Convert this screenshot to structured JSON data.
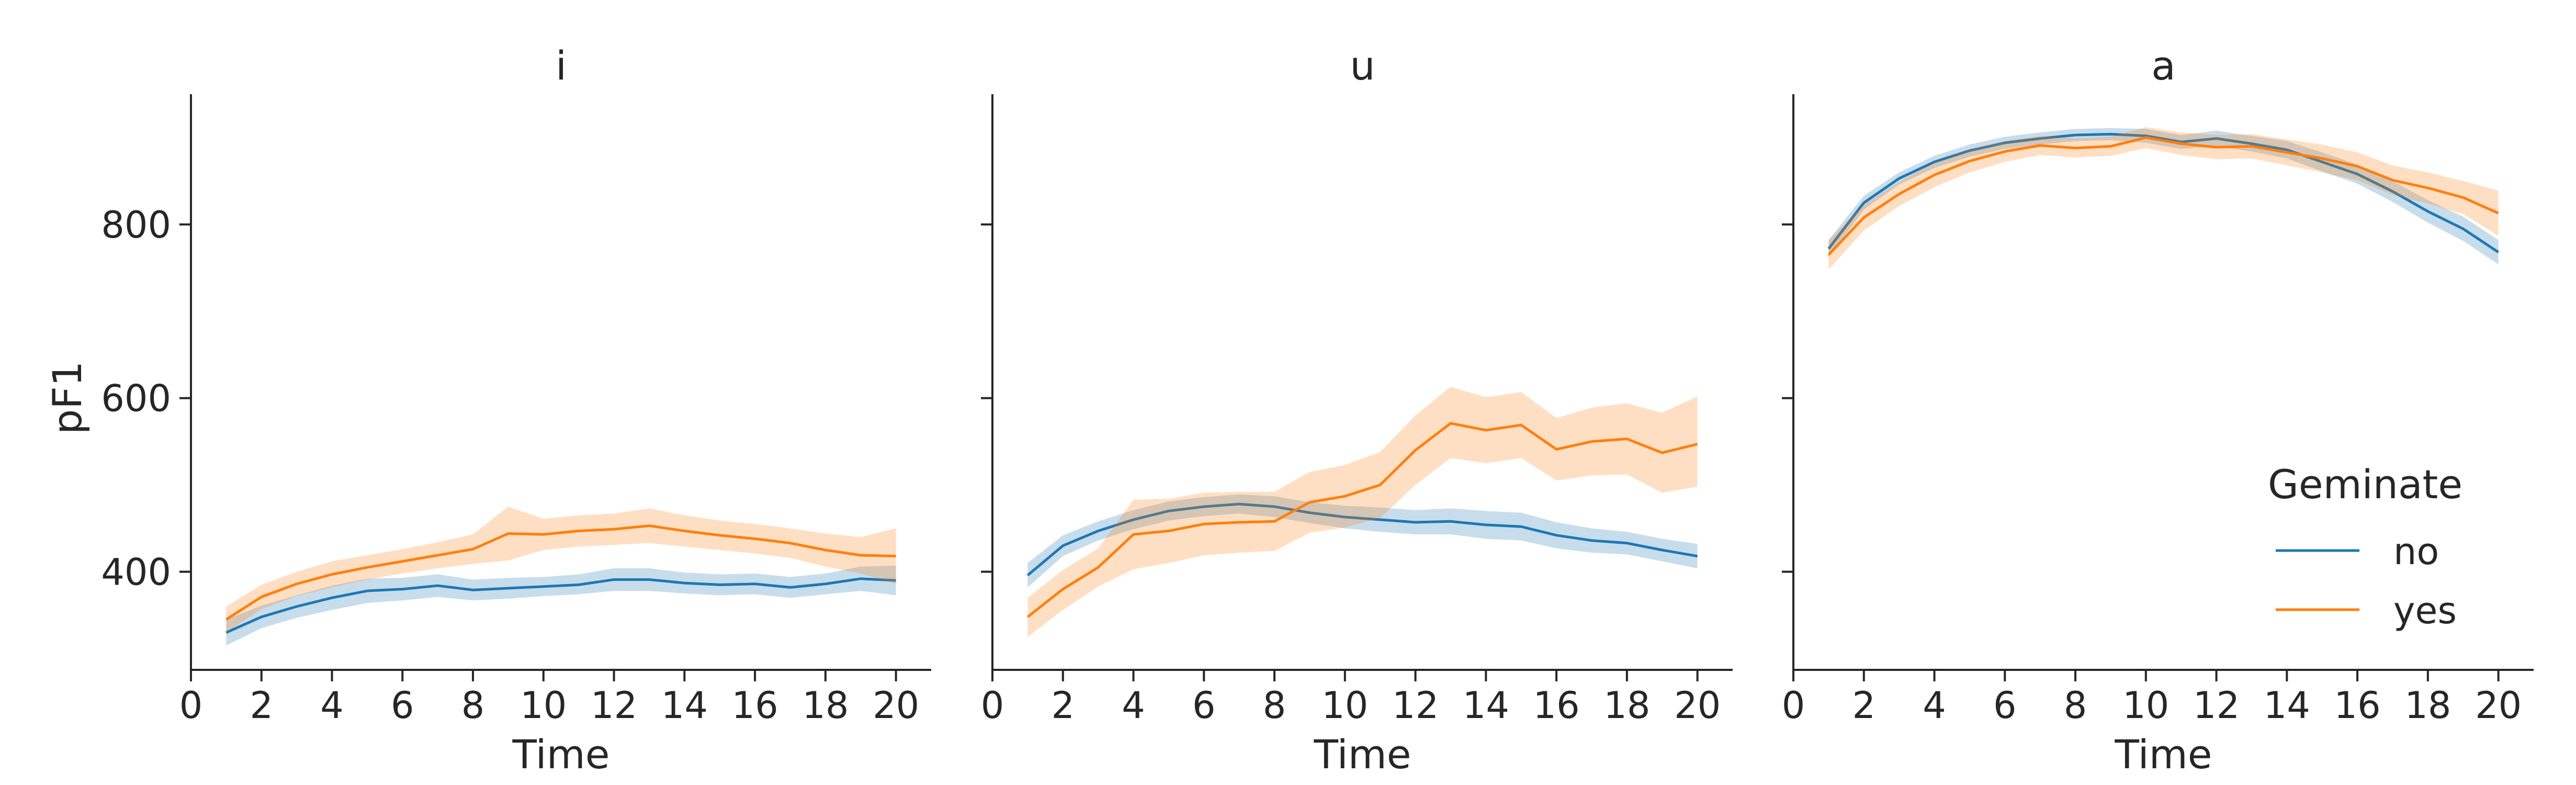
{
  "chart_data": {
    "type": "line",
    "figure_ylabel": "pF1",
    "xlabel": "Time",
    "xlim": [
      0,
      21
    ],
    "ylim": [
      287,
      950
    ],
    "xticks": [
      0,
      2,
      4,
      6,
      8,
      10,
      12,
      14,
      16,
      18,
      20
    ],
    "yticks": [
      400,
      600,
      800
    ],
    "grid": false,
    "x": [
      1,
      2,
      3,
      4,
      5,
      6,
      7,
      8,
      9,
      10,
      11,
      12,
      13,
      14,
      15,
      16,
      17,
      18,
      19,
      20
    ],
    "legend": {
      "title": "Geminate",
      "placement": "lower-right of right panel",
      "entries": [
        {
          "label": "no",
          "color": "#1f77b4"
        },
        {
          "label": "yes",
          "color": "#ff7f0e"
        }
      ]
    },
    "panels": [
      {
        "title": "i",
        "series": [
          {
            "name": "no",
            "color": "#1f77b4",
            "mean": [
              330,
              348,
              360,
              370,
              378,
              380,
              384,
              379,
              381,
              383,
              385,
              391,
              391,
              387,
              385,
              386,
              382,
              386,
              392,
              390
            ],
            "lower": [
              315,
              335,
              347,
              356,
              364,
              367,
              371,
              367,
              369,
              372,
              374,
              378,
              378,
              375,
              373,
              374,
              370,
              374,
              378,
              373
            ],
            "upper": [
              345,
              361,
              373,
              384,
              392,
              393,
              397,
              391,
              393,
              394,
              397,
              404,
              404,
              399,
              397,
              398,
              394,
              398,
              406,
              407
            ]
          },
          {
            "name": "yes",
            "color": "#ff7f0e",
            "mean": [
              345,
              371,
              386,
              397,
              405,
              412,
              419,
              426,
              444,
              443,
              447,
              449,
              453,
              447,
              442,
              438,
              433,
              425,
              419,
              418
            ],
            "lower": [
              330,
              357,
              372,
              382,
              391,
              398,
              404,
              409,
              413,
              425,
              429,
              431,
              433,
              429,
              425,
              421,
              416,
              406,
              398,
              386
            ],
            "upper": [
              360,
              385,
              400,
              412,
              419,
              426,
              434,
              443,
              475,
              461,
              465,
              467,
              473,
              465,
              459,
              455,
              450,
              444,
              440,
              450
            ]
          }
        ]
      },
      {
        "title": "u",
        "series": [
          {
            "name": "no",
            "color": "#1f77b4",
            "mean": [
              396,
              430,
              447,
              460,
              470,
              475,
              478,
              475,
              468,
              463,
              460,
              457,
              458,
              454,
              452,
              442,
              436,
              433,
              425,
              418
            ],
            "lower": [
              382,
              418,
              436,
              449,
              459,
              464,
              467,
              463,
              456,
              450,
              446,
              443,
              443,
              438,
              436,
              427,
              422,
              420,
              412,
              404
            ],
            "upper": [
              410,
              442,
              458,
              471,
              481,
              486,
              489,
              487,
              480,
              476,
              474,
              471,
              473,
              470,
              468,
              457,
              450,
              446,
              438,
              432
            ]
          },
          {
            "name": "yes",
            "color": "#ff7f0e",
            "mean": [
              348,
              380,
              405,
              443,
              447,
              455,
              457,
              458,
              480,
              487,
              500,
              540,
              571,
              563,
              569,
              541,
              550,
              553,
              537,
              547
            ],
            "lower": [
              325,
              356,
              383,
              403,
              410,
              419,
              422,
              424,
              445,
              451,
              462,
              500,
              531,
              525,
              531,
              505,
              511,
              512,
              491,
              498
            ],
            "upper": [
              370,
              402,
              427,
              483,
              484,
              491,
              492,
              492,
              515,
              523,
              538,
              580,
              613,
              601,
              607,
              577,
              589,
              594,
              583,
              602
            ]
          }
        ]
      },
      {
        "title": "a",
        "series": [
          {
            "name": "no",
            "color": "#1f77b4",
            "mean": [
              772,
              825,
              853,
              872,
              885,
              894,
              899,
              903,
              904,
              902,
              895,
              899,
              893,
              886,
              872,
              858,
              838,
              815,
              795,
              768
            ],
            "lower": [
              762,
              817,
              846,
              865,
              878,
              887,
              892,
              896,
              897,
              894,
              887,
              890,
              884,
              876,
              861,
              847,
              826,
              802,
              781,
              754
            ],
            "upper": [
              782,
              833,
              860,
              879,
              892,
              901,
              906,
              910,
              911,
              910,
              903,
              908,
              902,
              896,
              883,
              869,
              850,
              828,
              809,
              782
            ]
          },
          {
            "name": "yes",
            "color": "#ff7f0e",
            "mean": [
              765,
              808,
              835,
              857,
              873,
              884,
              891,
              888,
              890,
              900,
              893,
              889,
              890,
              883,
              876,
              867,
              851,
              842,
              831,
              813
            ],
            "lower": [
              748,
              793,
              821,
              843,
              860,
              872,
              880,
              877,
              879,
              888,
              880,
              875,
              876,
              868,
              860,
              851,
              834,
              824,
              812,
              787
            ],
            "upper": [
              782,
              823,
              849,
              871,
              886,
              896,
              902,
              899,
              901,
              912,
              906,
              903,
              904,
              898,
              892,
              883,
              868,
              860,
              850,
              839
            ]
          }
        ]
      }
    ]
  }
}
